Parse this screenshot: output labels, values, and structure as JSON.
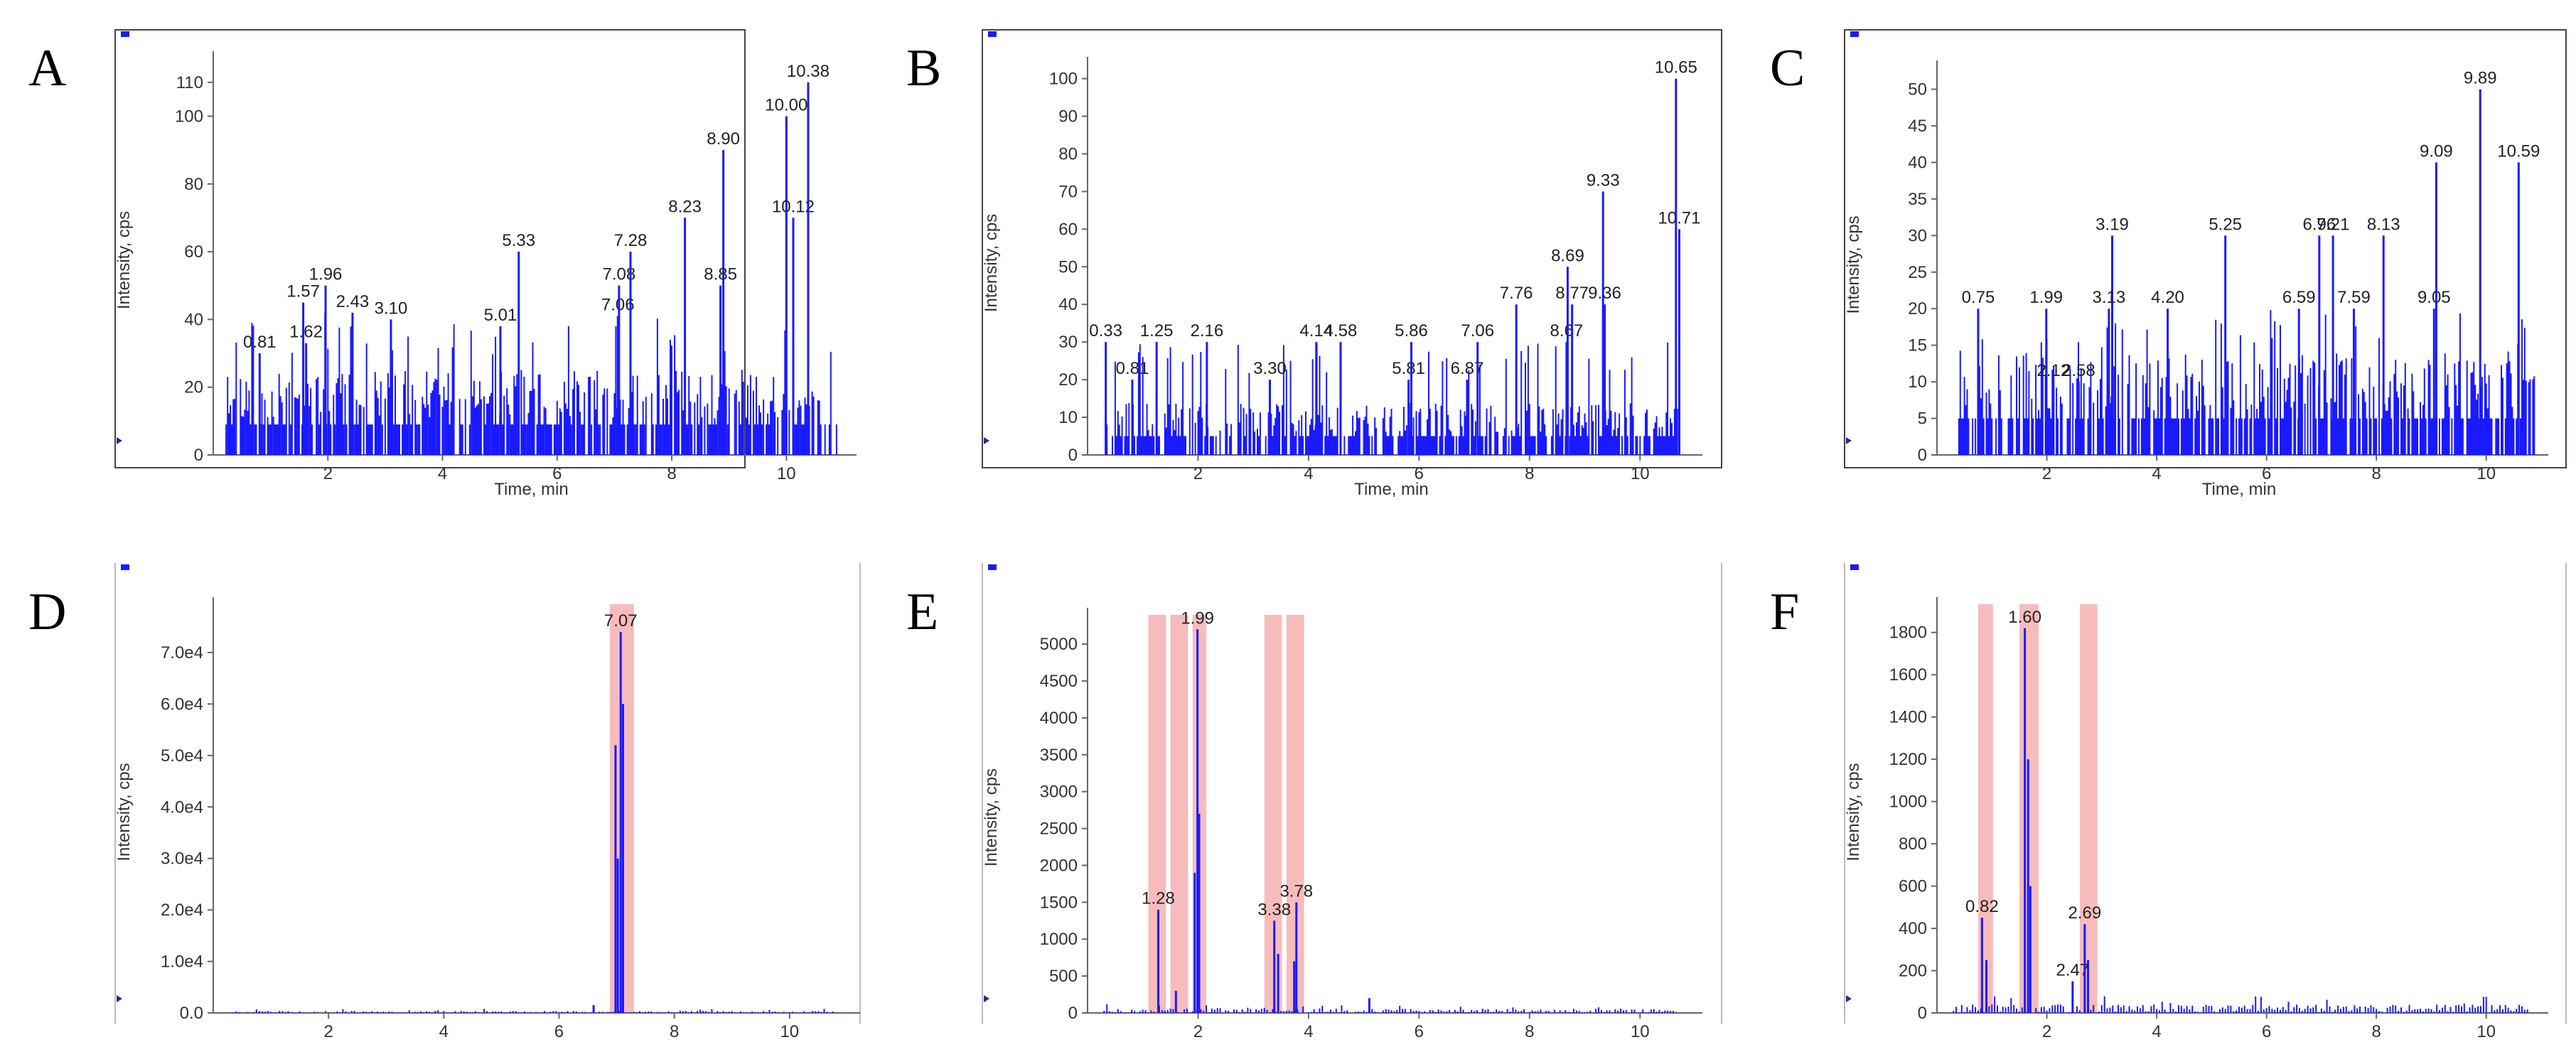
{
  "colors": {
    "trace": "#1a1aff",
    "highlight": "#f6bcbc",
    "frame": "#444444",
    "marker": "#1a1aff"
  },
  "chart_data": [
    {
      "panel": "A",
      "type": "line",
      "framed": true,
      "xlabel": "Time, min",
      "ylabel": "Intensity, cps",
      "xlim": [
        0.0,
        11.1
      ],
      "ylim": [
        0,
        115
      ],
      "xticks": [
        "2",
        "4",
        "6",
        "8",
        "10"
      ],
      "xtick_values": [
        2,
        4,
        6,
        8,
        10
      ],
      "yticks": [
        "0",
        "20",
        "40",
        "60",
        "80",
        "100",
        "110"
      ],
      "ytick_values": [
        0,
        20,
        40,
        60,
        80,
        100,
        110
      ],
      "noise": {
        "base": 18,
        "max": 42,
        "start": 0.2,
        "end": 10.9,
        "step": 0.025,
        "seed": 11
      },
      "peaks": [
        {
          "time": 0.81,
          "value": 30,
          "label": "0.81"
        },
        {
          "time": 1.62,
          "value": 33,
          "label": "1.62"
        },
        {
          "time": 1.57,
          "value": 45,
          "label": "1.57"
        },
        {
          "time": 1.96,
          "value": 50,
          "label": "1.96"
        },
        {
          "time": 2.43,
          "value": 42,
          "label": "2.43"
        },
        {
          "time": 3.1,
          "value": 40,
          "label": "3.10"
        },
        {
          "time": 5.01,
          "value": 38,
          "label": "5.01"
        },
        {
          "time": 5.33,
          "value": 60,
          "label": "5.33"
        },
        {
          "time": 7.06,
          "value": 41,
          "label": "7.06"
        },
        {
          "time": 7.08,
          "value": 50,
          "label": "7.08"
        },
        {
          "time": 7.28,
          "value": 60,
          "label": "7.28"
        },
        {
          "time": 8.23,
          "value": 70,
          "label": "8.23"
        },
        {
          "time": 8.9,
          "value": 90,
          "label": "8.90"
        },
        {
          "time": 8.85,
          "value": 50,
          "label": "8.85"
        },
        {
          "time": 10.0,
          "value": 100,
          "label": "10.00"
        },
        {
          "time": 10.12,
          "value": 70,
          "label": "10.12"
        },
        {
          "time": 10.38,
          "value": 110,
          "label": "10.38"
        }
      ],
      "highlights": []
    },
    {
      "panel": "B",
      "type": "line",
      "framed": true,
      "xlabel": "Time, min",
      "ylabel": "Intensity, cps",
      "xlim": [
        0.0,
        11.0
      ],
      "ylim": [
        0,
        102
      ],
      "xticks": [
        "2",
        "4",
        "6",
        "8",
        "10"
      ],
      "xtick_values": [
        2,
        4,
        6,
        8,
        10
      ],
      "yticks": [
        "0",
        "10",
        "20",
        "30",
        "40",
        "50",
        "60",
        "70",
        "80",
        "90",
        "100"
      ],
      "ytick_values": [
        0,
        10,
        20,
        30,
        40,
        50,
        60,
        70,
        80,
        90,
        100
      ],
      "noise": {
        "base": 10,
        "max": 30,
        "start": 0.3,
        "end": 10.7,
        "step": 0.025,
        "seed": 23
      },
      "peaks": [
        {
          "time": 0.33,
          "value": 30,
          "label": "0.33"
        },
        {
          "time": 0.81,
          "value": 20,
          "label": "0.81"
        },
        {
          "time": 1.25,
          "value": 30,
          "label": "1.25"
        },
        {
          "time": 2.16,
          "value": 30,
          "label": "2.16"
        },
        {
          "time": 3.3,
          "value": 20,
          "label": "3.30"
        },
        {
          "time": 4.14,
          "value": 30,
          "label": "4.14"
        },
        {
          "time": 4.58,
          "value": 30,
          "label": "4.58"
        },
        {
          "time": 5.81,
          "value": 20,
          "label": "5.81"
        },
        {
          "time": 5.86,
          "value": 30,
          "label": "5.86"
        },
        {
          "time": 6.87,
          "value": 20,
          "label": "6.87"
        },
        {
          "time": 7.06,
          "value": 30,
          "label": "7.06"
        },
        {
          "time": 7.76,
          "value": 40,
          "label": "7.76"
        },
        {
          "time": 8.67,
          "value": 30,
          "label": "8.67"
        },
        {
          "time": 8.77,
          "value": 40,
          "label": "8.77"
        },
        {
          "time": 8.69,
          "value": 50,
          "label": "8.69"
        },
        {
          "time": 9.33,
          "value": 70,
          "label": "9.33"
        },
        {
          "time": 9.36,
          "value": 40,
          "label": "9.36"
        },
        {
          "time": 10.71,
          "value": 60,
          "label": "10.71"
        },
        {
          "time": 10.65,
          "value": 100,
          "label": "10.65"
        }
      ],
      "highlights": []
    },
    {
      "panel": "C",
      "type": "line",
      "framed": true,
      "xlabel": "Time, min",
      "ylabel": "Intensity, cps",
      "xlim": [
        0.0,
        11.0
      ],
      "ylim": [
        0,
        52
      ],
      "xticks": [
        "2",
        "4",
        "6",
        "8",
        "10"
      ],
      "xtick_values": [
        2,
        4,
        6,
        8,
        10
      ],
      "yticks": [
        "0",
        "5",
        "10",
        "15",
        "20",
        "25",
        "30",
        "35",
        "40",
        "45",
        "50"
      ],
      "ytick_values": [
        0,
        5,
        10,
        15,
        20,
        25,
        30,
        35,
        40,
        45,
        50
      ],
      "noise": {
        "base": 10,
        "max": 20,
        "start": 0.4,
        "end": 10.9,
        "step": 0.025,
        "seed": 37
      },
      "peaks": [
        {
          "time": 0.75,
          "value": 20,
          "label": "0.75"
        },
        {
          "time": 1.99,
          "value": 20,
          "label": "1.99"
        },
        {
          "time": 2.12,
          "value": 10,
          "label": "2.12"
        },
        {
          "time": 2.58,
          "value": 10,
          "label": "2.58"
        },
        {
          "time": 3.19,
          "value": 30,
          "label": "3.19"
        },
        {
          "time": 3.13,
          "value": 20,
          "label": "3.13"
        },
        {
          "time": 4.2,
          "value": 20,
          "label": "4.20"
        },
        {
          "time": 5.25,
          "value": 30,
          "label": "5.25"
        },
        {
          "time": 6.59,
          "value": 20,
          "label": "6.59"
        },
        {
          "time": 6.96,
          "value": 30,
          "label": "6.96"
        },
        {
          "time": 7.21,
          "value": 30,
          "label": "7.21"
        },
        {
          "time": 7.59,
          "value": 20,
          "label": "7.59"
        },
        {
          "time": 8.13,
          "value": 30,
          "label": "8.13"
        },
        {
          "time": 9.05,
          "value": 20,
          "label": "9.05"
        },
        {
          "time": 9.09,
          "value": 40,
          "label": "9.09"
        },
        {
          "time": 9.89,
          "value": 50,
          "label": "9.89"
        },
        {
          "time": 10.59,
          "value": 40,
          "label": "10.59"
        }
      ],
      "highlights": []
    },
    {
      "panel": "D",
      "type": "line",
      "framed": false,
      "xlabel": "",
      "ylabel": "Intensity, cps",
      "xlim": [
        0.0,
        11.1
      ],
      "ylim": [
        0,
        78000
      ],
      "xticks": [
        "2",
        "4",
        "6",
        "8",
        "10"
      ],
      "xtick_values": [
        2,
        4,
        6,
        8,
        10
      ],
      "yticks": [
        "0.0",
        "1.0e4",
        "2.0e4",
        "3.0e4",
        "4.0e4",
        "5.0e4",
        "6.0e4",
        "7.0e4"
      ],
      "ytick_values": [
        0,
        10000,
        20000,
        30000,
        40000,
        50000,
        60000,
        70000
      ],
      "noise": {
        "base": 0,
        "max": 400,
        "start": 0.3,
        "end": 10.8,
        "step": 0.05,
        "seed": 5
      },
      "peaks": [
        {
          "time": 7.07,
          "value": 74000,
          "label": "7.07"
        }
      ],
      "shape_peaks": [
        {
          "time": 6.98,
          "value": 52000
        },
        {
          "time": 7.02,
          "value": 30000
        },
        {
          "time": 7.11,
          "value": 60000
        },
        {
          "time": 6.6,
          "value": 1500
        }
      ],
      "highlights": [
        [
          6.88,
          7.3
        ]
      ]
    },
    {
      "panel": "E",
      "type": "line",
      "framed": false,
      "xlabel": "",
      "ylabel": "Intensity, cps",
      "xlim": [
        0.0,
        11.0
      ],
      "ylim": [
        0,
        5300
      ],
      "xticks": [
        "2",
        "4",
        "6",
        "8",
        "10"
      ],
      "xtick_values": [
        2,
        4,
        6,
        8,
        10
      ],
      "yticks": [
        "0",
        "500",
        "1000",
        "1500",
        "2000",
        "2500",
        "3000",
        "3500",
        "4000",
        "4500",
        "5000"
      ],
      "ytick_values": [
        0,
        500,
        1000,
        1500,
        2000,
        2500,
        3000,
        3500,
        4000,
        4500,
        5000
      ],
      "noise": {
        "base": 0,
        "max": 60,
        "start": 0.3,
        "end": 10.7,
        "step": 0.05,
        "seed": 9
      },
      "peaks": [
        {
          "time": 1.28,
          "value": 1400,
          "label": "1.28"
        },
        {
          "time": 1.99,
          "value": 5200,
          "label": "1.99"
        },
        {
          "time": 3.38,
          "value": 1250,
          "label": "3.38"
        },
        {
          "time": 3.78,
          "value": 1500,
          "label": "3.78"
        }
      ],
      "shape_peaks": [
        {
          "time": 1.6,
          "value": 300
        },
        {
          "time": 2.02,
          "value": 2700
        },
        {
          "time": 1.94,
          "value": 1900
        },
        {
          "time": 3.45,
          "value": 800
        },
        {
          "time": 3.74,
          "value": 700
        },
        {
          "time": 5.1,
          "value": 200
        }
      ],
      "highlights": [
        [
          1.1,
          1.42
        ],
        [
          1.5,
          1.82
        ],
        [
          1.9,
          2.15
        ],
        [
          3.2,
          3.52
        ],
        [
          3.6,
          3.92
        ]
      ]
    },
    {
      "panel": "F",
      "type": "line",
      "framed": false,
      "xlabel": "",
      "ylabel": "Intensity, cps",
      "xlim": [
        0.0,
        11.0
      ],
      "ylim": [
        0,
        1900
      ],
      "xticks": [
        "2",
        "4",
        "6",
        "8",
        "10"
      ],
      "xtick_values": [
        2,
        4,
        6,
        8,
        10
      ],
      "yticks": [
        "0",
        "200",
        "400",
        "600",
        "800",
        "1000",
        "1200",
        "1400",
        "1600",
        "1800"
      ],
      "ytick_values": [
        0,
        200,
        400,
        600,
        800,
        1000,
        1200,
        1400,
        1600,
        1800
      ],
      "noise": {
        "base": 0,
        "max": 40,
        "start": 0.3,
        "end": 10.8,
        "step": 0.05,
        "seed": 13
      },
      "peaks": [
        {
          "time": 0.82,
          "value": 450,
          "label": "0.82"
        },
        {
          "time": 1.6,
          "value": 1820,
          "label": "1.60"
        },
        {
          "time": 2.47,
          "value": 150,
          "label": "2.47"
        },
        {
          "time": 2.69,
          "value": 420,
          "label": "2.69"
        }
      ],
      "shape_peaks": [
        {
          "time": 0.9,
          "value": 250
        },
        {
          "time": 1.66,
          "value": 1200
        },
        {
          "time": 1.7,
          "value": 600
        },
        {
          "time": 2.75,
          "value": 250
        }
      ],
      "highlights": [
        [
          0.75,
          1.02
        ],
        [
          1.5,
          1.85
        ],
        [
          2.6,
          2.92
        ]
      ]
    }
  ]
}
